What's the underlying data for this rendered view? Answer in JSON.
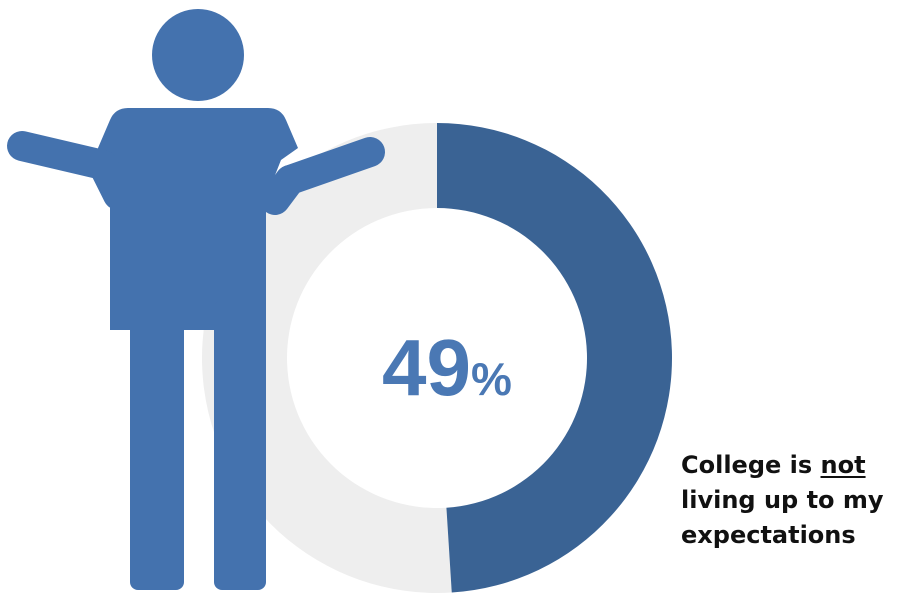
{
  "chart_data": {
    "type": "pie",
    "variant": "donut",
    "value_percent": 49,
    "slices": [
      {
        "label": "College is not living up to my expectations",
        "value": 49,
        "color": "#3a6394"
      },
      {
        "label": "",
        "value": 51,
        "color": "#eeeeee"
      }
    ],
    "center_label": {
      "number": "49",
      "unit": "%"
    }
  },
  "caption": {
    "part1": "College is ",
    "emphasis": "not",
    "part2": "living up to my",
    "part3": "expectations"
  },
  "figure_icon": "person-shrugging-icon",
  "colors": {
    "figure": "#4472ae",
    "filled_arc": "#3a6394",
    "track_arc": "#eeeeee",
    "center_text": "#4a78b4",
    "caption_text": "#111111"
  }
}
